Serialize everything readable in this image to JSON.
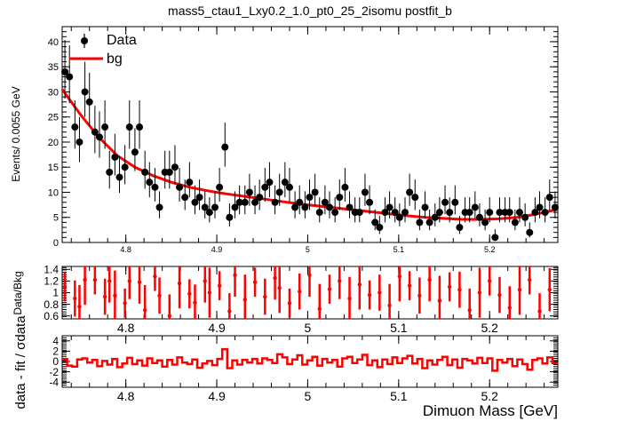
{
  "chart_data": [
    {
      "type": "scatter",
      "title": "mass5_ctau1_Lxy0.2_1.0_pt0_25_2isomu   postfit_b",
      "xlabel": "",
      "ylabel": "Events/ 0.0055 GeV",
      "xlim": [
        4.73,
        5.275
      ],
      "ylim": [
        0,
        43
      ],
      "xticks": [
        "4.8",
        "4.9",
        "5",
        "5.1",
        "5.2"
      ],
      "xtick_values": [
        4.8,
        4.9,
        5.0,
        5.1,
        5.2
      ],
      "yticks": [
        "0",
        "5",
        "10",
        "15",
        "20",
        "25",
        "30",
        "35",
        "40"
      ],
      "ytick_values": [
        0,
        5,
        10,
        15,
        20,
        25,
        30,
        35,
        40
      ],
      "legend": {
        "placement": "top-left",
        "entries": [
          "Data",
          "bg"
        ]
      },
      "colors": {
        "data": "#000000",
        "bg": "#ff0000"
      },
      "series": [
        {
          "name": "Data",
          "x": [
            4.733,
            4.738,
            4.744,
            4.749,
            4.755,
            4.76,
            4.766,
            4.771,
            4.777,
            4.782,
            4.788,
            4.793,
            4.799,
            4.804,
            4.81,
            4.815,
            4.821,
            4.826,
            4.832,
            4.837,
            4.843,
            4.848,
            4.854,
            4.859,
            4.865,
            4.87,
            4.876,
            4.881,
            4.887,
            4.892,
            4.898,
            4.903,
            4.909,
            4.914,
            4.92,
            4.925,
            4.931,
            4.936,
            4.942,
            4.947,
            4.953,
            4.958,
            4.964,
            4.969,
            4.975,
            4.98,
            4.986,
            4.991,
            4.997,
            5.002,
            5.008,
            5.013,
            5.019,
            5.024,
            5.03,
            5.035,
            5.041,
            5.046,
            5.052,
            5.057,
            5.063,
            5.068,
            5.074,
            5.079,
            5.085,
            5.09,
            5.096,
            5.101,
            5.107,
            5.112,
            5.118,
            5.123,
            5.129,
            5.134,
            5.14,
            5.145,
            5.151,
            5.156,
            5.162,
            5.167,
            5.173,
            5.178,
            5.184,
            5.189,
            5.195,
            5.2,
            5.206,
            5.211,
            5.217,
            5.222,
            5.228,
            5.233,
            5.239,
            5.244,
            5.25,
            5.255,
            5.261,
            5.266,
            5.272
          ],
          "y": [
            34,
            33,
            23,
            20,
            30,
            28,
            22,
            21,
            23,
            14,
            17,
            13,
            15,
            23,
            18,
            23,
            14,
            12,
            11,
            7,
            14,
            14,
            15,
            11,
            9,
            12,
            8,
            9,
            7,
            6,
            7,
            11,
            19,
            5,
            7,
            8,
            8,
            10,
            8,
            9,
            11,
            12,
            8,
            10,
            12,
            11,
            7,
            8,
            7,
            9,
            10,
            6,
            8,
            7,
            6,
            9,
            11,
            7,
            6,
            6,
            10,
            8,
            4,
            3,
            6,
            7,
            6,
            5,
            6,
            10,
            9,
            4,
            7,
            4,
            5,
            6,
            8,
            6,
            8,
            3,
            6,
            6,
            7,
            5,
            4,
            6,
            1,
            6,
            6,
            6,
            4,
            6,
            5,
            2,
            6,
            7,
            6,
            9,
            7
          ]
        },
        {
          "name": "bg",
          "x": [
            4.73,
            4.75,
            4.77,
            4.79,
            4.81,
            4.83,
            4.85,
            4.87,
            4.89,
            4.91,
            4.93,
            4.95,
            4.97,
            4.99,
            5.01,
            5.03,
            5.05,
            5.07,
            5.09,
            5.11,
            5.13,
            5.15,
            5.17,
            5.19,
            5.21,
            5.23,
            5.25,
            5.275
          ],
          "y": [
            30.5,
            25.5,
            21.0,
            17.4,
            15.0,
            13.3,
            12.0,
            11.0,
            10.3,
            9.7,
            9.2,
            8.7,
            8.2,
            7.7,
            7.3,
            6.9,
            6.5,
            6.1,
            5.7,
            5.3,
            5.0,
            4.8,
            4.6,
            4.6,
            4.7,
            5.0,
            5.6,
            6.6
          ]
        }
      ]
    },
    {
      "type": "scatter",
      "title": "",
      "xlabel": "",
      "ylabel": "Data/Bkg",
      "xlim": [
        4.73,
        5.275
      ],
      "ylim": [
        0.55,
        1.45
      ],
      "xticks": [
        "4.8",
        "4.9",
        "5",
        "5.1",
        "5.2"
      ],
      "xtick_values": [
        4.8,
        4.9,
        5.0,
        5.1,
        5.2
      ],
      "yticks": [
        "0.6",
        "0.8",
        "1",
        "1.2",
        "1.4"
      ],
      "ytick_values": [
        0.6,
        0.8,
        1.0,
        1.2,
        1.4
      ],
      "colors": {
        "ratio": "#ff0000"
      },
      "series": [
        {
          "x": [
            4.733,
            4.744,
            4.749,
            4.755,
            4.766,
            4.777,
            4.782,
            4.788,
            4.799,
            4.804,
            4.815,
            4.821,
            4.832,
            4.837,
            4.848,
            4.859,
            4.87,
            4.876,
            4.887,
            4.892,
            4.903,
            4.914,
            4.92,
            4.931,
            4.942,
            4.953,
            4.964,
            4.969,
            4.98,
            4.991,
            5.002,
            5.013,
            5.024,
            5.035,
            5.046,
            5.057,
            5.068,
            5.079,
            5.09,
            5.101,
            5.112,
            5.123,
            5.134,
            5.145,
            5.156,
            5.167,
            5.178,
            5.189,
            5.2,
            5.211,
            5.222,
            5.233,
            5.244,
            5.255,
            5.266
          ],
          "y": [
            1.1,
            0.9,
            0.76,
            1.22,
            1.22,
            0.93,
            1.2,
            0.95,
            0.82,
            1.2,
            1.18,
            0.7,
            1.28,
            0.95,
            0.6,
            1.16,
            0.98,
            0.83,
            1.2,
            1.0,
            1.12,
            0.68,
            1.3,
            0.88,
            1.18,
            0.93,
            1.25,
            1.08,
            0.82,
            1.02,
            1.3,
            0.72,
            1.06,
            1.2,
            0.9,
            1.14,
            0.96,
            1.0,
            0.78,
            1.28,
            1.12,
            0.95,
            1.22,
            0.86,
            1.1,
            1.05,
            0.7,
            1.0,
            1.2,
            0.96,
            0.74,
            1.05,
            1.22,
            0.68,
            1.05
          ]
        }
      ]
    },
    {
      "type": "line",
      "title": "",
      "xlabel": "Dimuon Mass [GeV]",
      "ylabel": "data - fit / σdata",
      "xlim": [
        4.73,
        5.275
      ],
      "ylim": [
        -5,
        5
      ],
      "xticks": [
        "4.8",
        "4.9",
        "5",
        "5.1",
        "5.2"
      ],
      "xtick_values": [
        4.8,
        4.9,
        5.0,
        5.1,
        5.2
      ],
      "yticks": [
        "-4",
        "-2",
        "0",
        "2",
        "4"
      ],
      "ytick_values": [
        -4,
        -2,
        0,
        2,
        4
      ],
      "colors": {
        "pull": "#ff0000"
      },
      "series": [
        {
          "x": [
            4.73,
            4.7355,
            4.741,
            4.7465,
            4.752,
            4.7575,
            4.763,
            4.7685,
            4.774,
            4.7795,
            4.785,
            4.7905,
            4.796,
            4.8015,
            4.807,
            4.8125,
            4.818,
            4.8235,
            4.829,
            4.8345,
            4.84,
            4.8455,
            4.851,
            4.8565,
            4.862,
            4.8675,
            4.873,
            4.8785,
            4.884,
            4.8895,
            4.895,
            4.9005,
            4.906,
            4.9115,
            4.917,
            4.9225,
            4.928,
            4.9335,
            4.939,
            4.9445,
            4.95,
            4.9555,
            4.961,
            4.9665,
            4.972,
            4.9775,
            4.983,
            4.9885,
            4.994,
            4.9995,
            5.005,
            5.0105,
            5.016,
            5.0215,
            5.027,
            5.0325,
            5.038,
            5.0435,
            5.049,
            5.0545,
            5.06,
            5.0655,
            5.071,
            5.0765,
            5.082,
            5.0875,
            5.093,
            5.0985,
            5.104,
            5.1095,
            5.115,
            5.1205,
            5.126,
            5.1315,
            5.137,
            5.1425,
            5.148,
            5.1535,
            5.159,
            5.1645,
            5.17,
            5.1755,
            5.181,
            5.1865,
            5.192,
            5.1975,
            5.203,
            5.2085,
            5.214,
            5.2195,
            5.225,
            5.2305,
            5.236,
            5.2415,
            5.247,
            5.2525,
            5.258,
            5.2635,
            5.269,
            5.275
          ],
          "y": [
            0.5,
            -0.8,
            -1.0,
            0.4,
            0.6,
            -0.2,
            0.3,
            -0.9,
            0.1,
            -0.6,
            0.5,
            -1.1,
            -0.4,
            0.7,
            -0.5,
            0.2,
            -0.8,
            0.6,
            -0.3,
            0.2,
            -1.0,
            0.3,
            -0.6,
            0.8,
            -0.2,
            -0.5,
            0.4,
            -1.2,
            -0.4,
            0.1,
            -0.7,
            0.5,
            2.4,
            -1.3,
            0.2,
            -0.6,
            0.3,
            -0.2,
            0.5,
            -0.4,
            0.6,
            0.3,
            -0.3,
            1.4,
            0.8,
            -0.5,
            0.4,
            1.2,
            -0.6,
            0.2,
            0.9,
            -0.8,
            0.5,
            -0.2,
            0.3,
            -1.0,
            0.6,
            0.9,
            -0.3,
            0.4,
            1.3,
            -0.7,
            0.2,
            -1.1,
            0.4,
            -0.5,
            0.8,
            -0.3,
            0.6,
            1.1,
            -0.4,
            0.5,
            -1.3,
            0.2,
            -0.6,
            0.3,
            0.9,
            -0.7,
            0.4,
            -1.2,
            0.5,
            0.2,
            -0.4,
            0.7,
            -0.3,
            0.6,
            -1.8,
            0.3,
            -0.2,
            0.5,
            -0.9,
            0.4,
            -0.5,
            -1.6,
            0.3,
            0.6,
            -0.4,
            0.8,
            -0.3,
            0.4
          ]
        }
      ]
    }
  ]
}
